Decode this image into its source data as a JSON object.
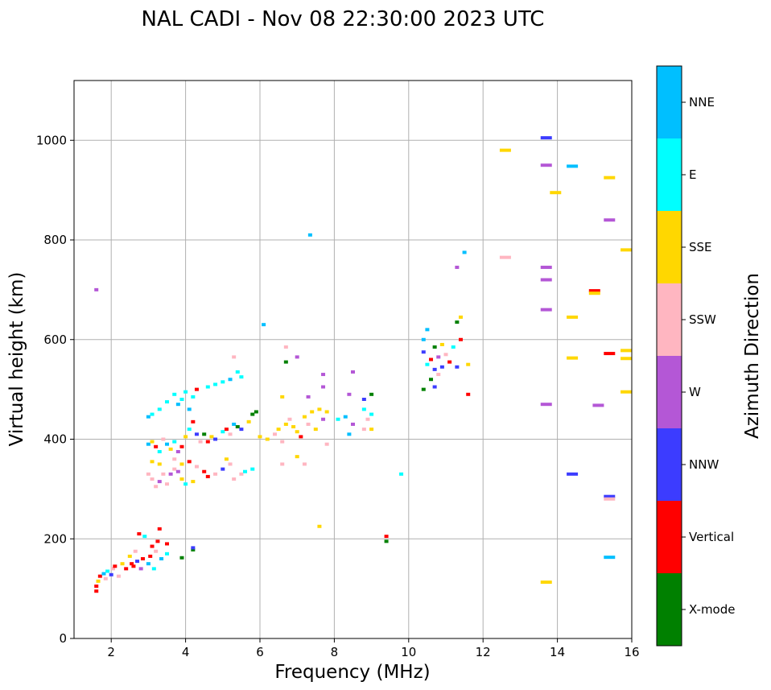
{
  "chart_data": {
    "type": "scatter",
    "title": "NAL CADI - Nov 08 22:30:00 2023 UTC",
    "xlabel": "Frequency (MHz)",
    "ylabel": "Virtual height (km)",
    "xlim": [
      1,
      16
    ],
    "ylim": [
      0,
      1120
    ],
    "grid": true,
    "xticks": [
      2,
      4,
      6,
      8,
      10,
      12,
      14,
      16
    ],
    "yticks": [
      0,
      200,
      400,
      600,
      800,
      1000
    ],
    "colorbar": {
      "title": "Azimuth Direction",
      "categories": [
        {
          "name": "X-mode",
          "color": "#008000"
        },
        {
          "name": "Vertical",
          "color": "#ff0000"
        },
        {
          "name": "NNW",
          "color": "#3c3cff"
        },
        {
          "name": "W",
          "color": "#b457d6"
        },
        {
          "name": "SSW",
          "color": "#ffb6c1"
        },
        {
          "name": "SSE",
          "color": "#ffd700"
        },
        {
          "name": "E",
          "color": "#00ffff"
        },
        {
          "name": "NNE",
          "color": "#00bfff"
        }
      ]
    },
    "points": [
      {
        "f": 1.6,
        "h": 700,
        "c": "W"
      },
      {
        "f": 1.6,
        "h": 95,
        "c": "Vertical"
      },
      {
        "f": 1.6,
        "h": 105,
        "c": "Vertical"
      },
      {
        "f": 1.65,
        "h": 115,
        "c": "SSE"
      },
      {
        "f": 1.7,
        "h": 125,
        "c": "Vertical"
      },
      {
        "f": 1.8,
        "h": 130,
        "c": "NNE"
      },
      {
        "f": 1.85,
        "h": 120,
        "c": "SSW"
      },
      {
        "f": 1.9,
        "h": 135,
        "c": "E"
      },
      {
        "f": 2.0,
        "h": 128,
        "c": "NNW"
      },
      {
        "f": 2.05,
        "h": 140,
        "c": "SSW"
      },
      {
        "f": 2.1,
        "h": 145,
        "c": "Vertical"
      },
      {
        "f": 2.2,
        "h": 125,
        "c": "SSW"
      },
      {
        "f": 2.3,
        "h": 150,
        "c": "SSE"
      },
      {
        "f": 2.4,
        "h": 140,
        "c": "Vertical"
      },
      {
        "f": 2.5,
        "h": 165,
        "c": "SSE"
      },
      {
        "f": 2.55,
        "h": 150,
        "c": "Vertical"
      },
      {
        "f": 2.6,
        "h": 145,
        "c": "Vertical"
      },
      {
        "f": 2.65,
        "h": 175,
        "c": "SSW"
      },
      {
        "f": 2.7,
        "h": 155,
        "c": "NNW"
      },
      {
        "f": 2.75,
        "h": 210,
        "c": "Vertical"
      },
      {
        "f": 2.8,
        "h": 140,
        "c": "W"
      },
      {
        "f": 2.85,
        "h": 160,
        "c": "Vertical"
      },
      {
        "f": 2.9,
        "h": 205,
        "c": "E"
      },
      {
        "f": 3.0,
        "h": 150,
        "c": "NNE"
      },
      {
        "f": 3.05,
        "h": 165,
        "c": "Vertical"
      },
      {
        "f": 3.1,
        "h": 185,
        "c": "Vertical"
      },
      {
        "f": 3.15,
        "h": 140,
        "c": "E"
      },
      {
        "f": 3.2,
        "h": 175,
        "c": "SSW"
      },
      {
        "f": 3.25,
        "h": 195,
        "c": "Vertical"
      },
      {
        "f": 3.3,
        "h": 220,
        "c": "Vertical"
      },
      {
        "f": 3.35,
        "h": 160,
        "c": "NNE"
      },
      {
        "f": 3.5,
        "h": 190,
        "c": "Vertical"
      },
      {
        "f": 3.5,
        "h": 170,
        "c": "E"
      },
      {
        "f": 3.9,
        "h": 162,
        "c": "X-mode"
      },
      {
        "f": 4.2,
        "h": 178,
        "c": "X-mode"
      },
      {
        "f": 4.2,
        "h": 182,
        "c": "NNW"
      },
      {
        "f": 3.0,
        "h": 445,
        "c": "NNE"
      },
      {
        "f": 3.1,
        "h": 450,
        "c": "E"
      },
      {
        "f": 3.3,
        "h": 460,
        "c": "E"
      },
      {
        "f": 3.5,
        "h": 475,
        "c": "E"
      },
      {
        "f": 3.7,
        "h": 490,
        "c": "E"
      },
      {
        "f": 3.8,
        "h": 470,
        "c": "NNE"
      },
      {
        "f": 3.9,
        "h": 480,
        "c": "E"
      },
      {
        "f": 4.0,
        "h": 495,
        "c": "E"
      },
      {
        "f": 4.1,
        "h": 460,
        "c": "NNE"
      },
      {
        "f": 4.2,
        "h": 485,
        "c": "E"
      },
      {
        "f": 4.3,
        "h": 500,
        "c": "Vertical"
      },
      {
        "f": 4.6,
        "h": 505,
        "c": "E"
      },
      {
        "f": 4.8,
        "h": 510,
        "c": "E"
      },
      {
        "f": 5.0,
        "h": 515,
        "c": "E"
      },
      {
        "f": 5.2,
        "h": 520,
        "c": "NNE"
      },
      {
        "f": 5.4,
        "h": 535,
        "c": "E"
      },
      {
        "f": 5.3,
        "h": 565,
        "c": "SSW"
      },
      {
        "f": 5.5,
        "h": 525,
        "c": "E"
      },
      {
        "f": 3.0,
        "h": 390,
        "c": "NNE"
      },
      {
        "f": 3.1,
        "h": 395,
        "c": "SSE"
      },
      {
        "f": 3.2,
        "h": 385,
        "c": "Vertical"
      },
      {
        "f": 3.3,
        "h": 375,
        "c": "E"
      },
      {
        "f": 3.4,
        "h": 400,
        "c": "SSW"
      },
      {
        "f": 3.5,
        "h": 390,
        "c": "NNE"
      },
      {
        "f": 3.6,
        "h": 380,
        "c": "SSE"
      },
      {
        "f": 3.7,
        "h": 395,
        "c": "E"
      },
      {
        "f": 3.8,
        "h": 375,
        "c": "W"
      },
      {
        "f": 3.9,
        "h": 385,
        "c": "Vertical"
      },
      {
        "f": 4.0,
        "h": 405,
        "c": "SSE"
      },
      {
        "f": 4.1,
        "h": 420,
        "c": "E"
      },
      {
        "f": 4.2,
        "h": 435,
        "c": "Vertical"
      },
      {
        "f": 4.3,
        "h": 410,
        "c": "NNW"
      },
      {
        "f": 4.4,
        "h": 395,
        "c": "SSW"
      },
      {
        "f": 4.5,
        "h": 410,
        "c": "X-mode"
      },
      {
        "f": 4.6,
        "h": 395,
        "c": "Vertical"
      },
      {
        "f": 4.7,
        "h": 405,
        "c": "SSE"
      },
      {
        "f": 4.8,
        "h": 400,
        "c": "NNW"
      },
      {
        "f": 5.0,
        "h": 415,
        "c": "E"
      },
      {
        "f": 5.1,
        "h": 420,
        "c": "Vertical"
      },
      {
        "f": 5.2,
        "h": 410,
        "c": "SSW"
      },
      {
        "f": 5.3,
        "h": 430,
        "c": "NNE"
      },
      {
        "f": 5.4,
        "h": 425,
        "c": "X-mode"
      },
      {
        "f": 5.5,
        "h": 420,
        "c": "NNW"
      },
      {
        "f": 5.7,
        "h": 435,
        "c": "SSE"
      },
      {
        "f": 5.8,
        "h": 450,
        "c": "X-mode"
      },
      {
        "f": 5.9,
        "h": 455,
        "c": "X-mode"
      },
      {
        "f": 6.0,
        "h": 405,
        "c": "SSE"
      },
      {
        "f": 6.1,
        "h": 630,
        "c": "NNE"
      },
      {
        "f": 3.0,
        "h": 330,
        "c": "SSW"
      },
      {
        "f": 3.1,
        "h": 320,
        "c": "SSW"
      },
      {
        "f": 3.2,
        "h": 305,
        "c": "SSW"
      },
      {
        "f": 3.3,
        "h": 315,
        "c": "W"
      },
      {
        "f": 3.4,
        "h": 330,
        "c": "SSW"
      },
      {
        "f": 3.5,
        "h": 310,
        "c": "SSW"
      },
      {
        "f": 3.6,
        "h": 330,
        "c": "W"
      },
      {
        "f": 3.7,
        "h": 340,
        "c": "SSW"
      },
      {
        "f": 3.8,
        "h": 335,
        "c": "W"
      },
      {
        "f": 3.9,
        "h": 320,
        "c": "SSE"
      },
      {
        "f": 4.0,
        "h": 310,
        "c": "E"
      },
      {
        "f": 4.1,
        "h": 355,
        "c": "Vertical"
      },
      {
        "f": 4.2,
        "h": 315,
        "c": "SSE"
      },
      {
        "f": 4.3,
        "h": 345,
        "c": "SSW"
      },
      {
        "f": 4.5,
        "h": 335,
        "c": "Vertical"
      },
      {
        "f": 4.6,
        "h": 325,
        "c": "Vertical"
      },
      {
        "f": 4.8,
        "h": 330,
        "c": "SSW"
      },
      {
        "f": 5.0,
        "h": 340,
        "c": "NNW"
      },
      {
        "f": 5.1,
        "h": 360,
        "c": "SSE"
      },
      {
        "f": 5.2,
        "h": 350,
        "c": "SSW"
      },
      {
        "f": 5.3,
        "h": 320,
        "c": "SSW"
      },
      {
        "f": 5.5,
        "h": 330,
        "c": "SSW"
      },
      {
        "f": 5.6,
        "h": 335,
        "c": "E"
      },
      {
        "f": 5.8,
        "h": 340,
        "c": "E"
      },
      {
        "f": 3.1,
        "h": 355,
        "c": "SSE"
      },
      {
        "f": 3.3,
        "h": 350,
        "c": "SSE"
      },
      {
        "f": 3.7,
        "h": 360,
        "c": "SSW"
      },
      {
        "f": 3.9,
        "h": 350,
        "c": "SSE"
      },
      {
        "f": 6.2,
        "h": 400,
        "c": "SSE"
      },
      {
        "f": 6.4,
        "h": 410,
        "c": "SSW"
      },
      {
        "f": 6.5,
        "h": 420,
        "c": "SSE"
      },
      {
        "f": 6.6,
        "h": 395,
        "c": "SSW"
      },
      {
        "f": 6.7,
        "h": 430,
        "c": "SSE"
      },
      {
        "f": 6.8,
        "h": 440,
        "c": "SSW"
      },
      {
        "f": 6.9,
        "h": 425,
        "c": "SSE"
      },
      {
        "f": 7.0,
        "h": 415,
        "c": "SSE"
      },
      {
        "f": 7.1,
        "h": 405,
        "c": "Vertical"
      },
      {
        "f": 7.2,
        "h": 445,
        "c": "SSE"
      },
      {
        "f": 7.3,
        "h": 430,
        "c": "SSW"
      },
      {
        "f": 7.4,
        "h": 455,
        "c": "SSE"
      },
      {
        "f": 7.5,
        "h": 420,
        "c": "SSE"
      },
      {
        "f": 7.6,
        "h": 460,
        "c": "SSE"
      },
      {
        "f": 7.7,
        "h": 440,
        "c": "W"
      },
      {
        "f": 7.7,
        "h": 505,
        "c": "W"
      },
      {
        "f": 7.8,
        "h": 455,
        "c": "SSE"
      },
      {
        "f": 7.7,
        "h": 530,
        "c": "W"
      },
      {
        "f": 7.3,
        "h": 485,
        "c": "W"
      },
      {
        "f": 6.6,
        "h": 485,
        "c": "SSE"
      },
      {
        "f": 6.7,
        "h": 585,
        "c": "SSW"
      },
      {
        "f": 6.7,
        "h": 555,
        "c": "X-mode"
      },
      {
        "f": 7.0,
        "h": 565,
        "c": "W"
      },
      {
        "f": 6.6,
        "h": 350,
        "c": "SSW"
      },
      {
        "f": 7.0,
        "h": 365,
        "c": "SSE"
      },
      {
        "f": 7.2,
        "h": 350,
        "c": "SSW"
      },
      {
        "f": 7.8,
        "h": 390,
        "c": "SSW"
      },
      {
        "f": 7.35,
        "h": 810,
        "c": "NNE"
      },
      {
        "f": 7.6,
        "h": 225,
        "c": "SSE"
      },
      {
        "f": 8.1,
        "h": 440,
        "c": "E"
      },
      {
        "f": 8.3,
        "h": 445,
        "c": "NNE"
      },
      {
        "f": 8.4,
        "h": 410,
        "c": "NNE"
      },
      {
        "f": 8.5,
        "h": 430,
        "c": "W"
      },
      {
        "f": 8.4,
        "h": 490,
        "c": "W"
      },
      {
        "f": 8.5,
        "h": 535,
        "c": "W"
      },
      {
        "f": 8.8,
        "h": 480,
        "c": "NNW"
      },
      {
        "f": 8.8,
        "h": 460,
        "c": "E"
      },
      {
        "f": 8.9,
        "h": 440,
        "c": "SSW"
      },
      {
        "f": 8.8,
        "h": 420,
        "c": "SSW"
      },
      {
        "f": 9.0,
        "h": 490,
        "c": "X-mode"
      },
      {
        "f": 9.0,
        "h": 450,
        "c": "E"
      },
      {
        "f": 9.0,
        "h": 420,
        "c": "SSE"
      },
      {
        "f": 9.4,
        "h": 205,
        "c": "Vertical"
      },
      {
        "f": 9.4,
        "h": 195,
        "c": "X-mode"
      },
      {
        "f": 9.8,
        "h": 330,
        "c": "E"
      },
      {
        "f": 10.4,
        "h": 600,
        "c": "NNE"
      },
      {
        "f": 10.4,
        "h": 575,
        "c": "NNW"
      },
      {
        "f": 10.5,
        "h": 620,
        "c": "NNE"
      },
      {
        "f": 10.5,
        "h": 550,
        "c": "E"
      },
      {
        "f": 10.6,
        "h": 560,
        "c": "Vertical"
      },
      {
        "f": 10.6,
        "h": 520,
        "c": "X-mode"
      },
      {
        "f": 10.7,
        "h": 540,
        "c": "NNW"
      },
      {
        "f": 10.7,
        "h": 585,
        "c": "X-mode"
      },
      {
        "f": 10.8,
        "h": 565,
        "c": "W"
      },
      {
        "f": 10.8,
        "h": 530,
        "c": "SSW"
      },
      {
        "f": 10.9,
        "h": 590,
        "c": "SSE"
      },
      {
        "f": 10.9,
        "h": 545,
        "c": "NNW"
      },
      {
        "f": 11.0,
        "h": 570,
        "c": "SSW"
      },
      {
        "f": 11.1,
        "h": 555,
        "c": "Vertical"
      },
      {
        "f": 11.2,
        "h": 585,
        "c": "E"
      },
      {
        "f": 11.3,
        "h": 545,
        "c": "NNW"
      },
      {
        "f": 11.4,
        "h": 600,
        "c": "Vertical"
      },
      {
        "f": 10.4,
        "h": 500,
        "c": "X-mode"
      },
      {
        "f": 10.7,
        "h": 505,
        "c": "NNW"
      },
      {
        "f": 11.3,
        "h": 635,
        "c": "X-mode"
      },
      {
        "f": 11.4,
        "h": 645,
        "c": "SSE"
      },
      {
        "f": 11.3,
        "h": 745,
        "c": "W"
      },
      {
        "f": 11.5,
        "h": 775,
        "c": "NNE"
      },
      {
        "f": 11.6,
        "h": 490,
        "c": "Vertical"
      },
      {
        "f": 11.6,
        "h": 550,
        "c": "SSE"
      },
      {
        "f": 12.6,
        "h": 980,
        "c": "SSE"
      },
      {
        "f": 12.6,
        "h": 765,
        "c": "SSW"
      },
      {
        "f": 13.7,
        "h": 1005,
        "c": "NNW"
      },
      {
        "f": 13.7,
        "h": 950,
        "c": "W"
      },
      {
        "f": 13.7,
        "h": 745,
        "c": "W"
      },
      {
        "f": 13.7,
        "h": 720,
        "c": "W"
      },
      {
        "f": 13.7,
        "h": 660,
        "c": "W"
      },
      {
        "f": 13.7,
        "h": 470,
        "c": "W"
      },
      {
        "f": 13.7,
        "h": 113,
        "c": "SSE"
      },
      {
        "f": 13.95,
        "h": 895,
        "c": "SSE"
      },
      {
        "f": 14.4,
        "h": 948,
        "c": "NNE"
      },
      {
        "f": 14.4,
        "h": 645,
        "c": "SSE"
      },
      {
        "f": 14.4,
        "h": 563,
        "c": "SSE"
      },
      {
        "f": 14.4,
        "h": 330,
        "c": "NNW"
      },
      {
        "f": 15.0,
        "h": 698,
        "c": "Vertical"
      },
      {
        "f": 15.0,
        "h": 693,
        "c": "SSE"
      },
      {
        "f": 15.1,
        "h": 468,
        "c": "W"
      },
      {
        "f": 15.4,
        "h": 925,
        "c": "SSE"
      },
      {
        "f": 15.4,
        "h": 840,
        "c": "W"
      },
      {
        "f": 15.4,
        "h": 572,
        "c": "Vertical"
      },
      {
        "f": 15.4,
        "h": 285,
        "c": "NNW"
      },
      {
        "f": 15.4,
        "h": 280,
        "c": "SSW"
      },
      {
        "f": 15.4,
        "h": 163,
        "c": "NNE"
      },
      {
        "f": 15.85,
        "h": 780,
        "c": "SSE"
      },
      {
        "f": 15.85,
        "h": 578,
        "c": "SSE"
      },
      {
        "f": 15.85,
        "h": 562,
        "c": "SSE"
      },
      {
        "f": 15.85,
        "h": 495,
        "c": "SSE"
      }
    ]
  }
}
